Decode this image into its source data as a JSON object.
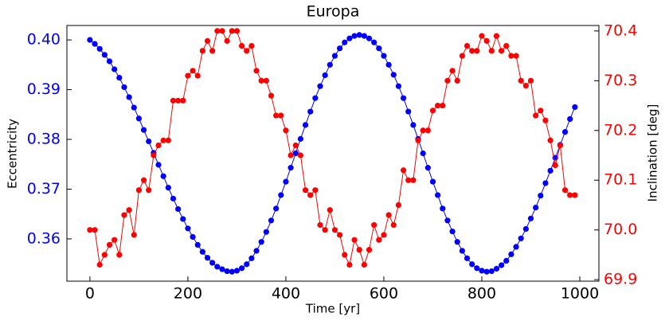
{
  "chart_data": {
    "type": "line",
    "title": "Europa",
    "xlabel": "Time [yr]",
    "ylabel": "Eccentricity",
    "y2label": "Inclination [deg]",
    "x": [
      0,
      10,
      20,
      30,
      40,
      50,
      60,
      70,
      80,
      90,
      100,
      110,
      120,
      130,
      140,
      150,
      160,
      170,
      180,
      190,
      200,
      210,
      220,
      230,
      240,
      250,
      260,
      270,
      280,
      290,
      300,
      310,
      320,
      330,
      340,
      350,
      360,
      370,
      380,
      390,
      400,
      410,
      420,
      430,
      440,
      450,
      460,
      470,
      480,
      490,
      500,
      510,
      520,
      530,
      540,
      550,
      560,
      570,
      580,
      590,
      600,
      610,
      620,
      630,
      640,
      650,
      660,
      670,
      680,
      690,
      700,
      710,
      720,
      730,
      740,
      750,
      760,
      770,
      780,
      790,
      800,
      810,
      820,
      830,
      840,
      850,
      860,
      870,
      880,
      890,
      900,
      910,
      920,
      930,
      940,
      950,
      960,
      970,
      980,
      990
    ],
    "series": [
      {
        "color": "#0000ff",
        "axis": "y",
        "values": [
          0.4,
          0.3992,
          0.3982,
          0.397,
          0.3957,
          0.3941,
          0.3924,
          0.3905,
          0.3885,
          0.3864,
          0.3842,
          0.3819,
          0.3796,
          0.3773,
          0.3749,
          0.3726,
          0.3703,
          0.3681,
          0.366,
          0.364,
          0.3621,
          0.3604,
          0.3588,
          0.3574,
          0.3562,
          0.3552,
          0.3544,
          0.3539,
          0.3535,
          0.3534,
          0.3536,
          0.3541,
          0.3549,
          0.3561,
          0.3576,
          0.3594,
          0.3614,
          0.3637,
          0.3661,
          0.3688,
          0.3715,
          0.3743,
          0.3772,
          0.3801,
          0.3829,
          0.3856,
          0.3883,
          0.3907,
          0.3929,
          0.395,
          0.3968,
          0.3983,
          0.3995,
          0.4003,
          0.4008,
          0.401,
          0.4008,
          0.4003,
          0.3995,
          0.3983,
          0.3968,
          0.395,
          0.393,
          0.3907,
          0.3883,
          0.3856,
          0.3829,
          0.3801,
          0.3772,
          0.3743,
          0.3715,
          0.3688,
          0.3661,
          0.3637,
          0.3615,
          0.3594,
          0.3576,
          0.3561,
          0.3549,
          0.3541,
          0.3536,
          0.3534,
          0.3535,
          0.354,
          0.3547,
          0.3556,
          0.3569,
          0.3584,
          0.3601,
          0.362,
          0.3641,
          0.3663,
          0.3687,
          0.3712,
          0.3737,
          0.3763,
          0.3789,
          0.3815,
          0.3841,
          0.3865
        ]
      },
      {
        "color": "#ff0000",
        "axis": "y2",
        "values": [
          70.0,
          70.0,
          69.93,
          69.95,
          69.97,
          69.98,
          69.95,
          70.03,
          70.04,
          69.99,
          70.08,
          70.1,
          70.08,
          70.15,
          70.17,
          70.18,
          70.18,
          70.26,
          70.26,
          70.26,
          70.31,
          70.32,
          70.31,
          70.36,
          70.38,
          70.36,
          70.4,
          70.4,
          70.38,
          70.4,
          70.4,
          70.37,
          70.36,
          70.37,
          70.32,
          70.3,
          70.3,
          70.27,
          70.23,
          70.23,
          70.2,
          70.15,
          70.17,
          70.15,
          70.08,
          70.07,
          70.08,
          70.01,
          70.0,
          70.04,
          70.0,
          69.99,
          69.95,
          69.93,
          69.98,
          69.96,
          69.93,
          69.96,
          70.01,
          69.98,
          69.99,
          70.03,
          70.01,
          70.05,
          70.12,
          70.1,
          70.1,
          70.18,
          70.2,
          70.2,
          70.24,
          70.25,
          70.25,
          70.3,
          70.32,
          70.3,
          70.35,
          70.37,
          70.36,
          70.36,
          70.39,
          70.38,
          70.36,
          70.39,
          70.36,
          70.37,
          70.35,
          70.35,
          70.3,
          70.29,
          70.3,
          70.23,
          70.24,
          70.22,
          70.18,
          70.13,
          70.17,
          70.08,
          70.07,
          70.07
        ]
      }
    ],
    "xlim": [
      -47,
      1039
    ],
    "xticks": [
      0,
      200,
      400,
      600,
      800,
      1000
    ],
    "ylim": [
      0.3515,
      0.4029
    ],
    "yticks": [
      0.36,
      0.37,
      0.38,
      0.39,
      {
        "value": 0.4,
        "label": "0.40"
      }
    ],
    "y2lim": [
      69.897,
      70.411
    ],
    "y2ticks": [
      69.9,
      {
        "value": 70,
        "label": "70.0"
      },
      70.1,
      70.2,
      70.3,
      70.4
    ],
    "ytick_color": "#0000ff",
    "y2tick_color": "#ff0000"
  }
}
